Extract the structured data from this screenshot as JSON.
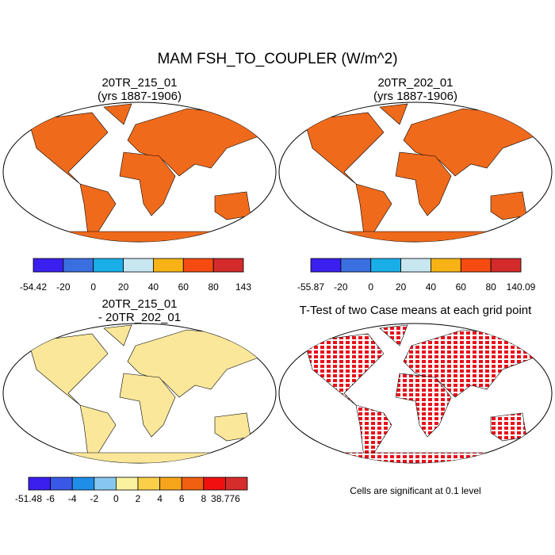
{
  "title": "MAM FSH_TO_COUPLER (W/m^2)",
  "panels": [
    {
      "title": "20TR_215_01",
      "subtitle": "(yrs 1887-1906)",
      "colorbar": {
        "colors": [
          "#3b1fee",
          "#3a6fe0",
          "#1aaee8",
          "#c8e6f0",
          "#f7b316",
          "#f54b10",
          "#d32b2b"
        ],
        "labels": [
          -54.42,
          -20,
          0,
          20,
          40,
          60,
          80,
          143
        ]
      }
    },
    {
      "title": "20TR_202_01",
      "subtitle": "(yrs 1887-1906)",
      "colorbar": {
        "colors": [
          "#3b1fee",
          "#3a6fe0",
          "#1aaee8",
          "#c8e6f0",
          "#f7b316",
          "#f54b10",
          "#d32b2b"
        ],
        "labels": [
          -55.87,
          -20,
          0,
          20,
          40,
          60,
          80,
          140.09
        ]
      }
    },
    {
      "title": "20TR_215_01",
      "subtitle": "- 20TR_202_01",
      "colorbar": {
        "colors": [
          "#3b1fee",
          "#3a58e6",
          "#1e8ee8",
          "#87c7ef",
          "#fbf2a0",
          "#fbd048",
          "#f7a51a",
          "#f06010",
          "#f01010",
          "#d52c2c"
        ],
        "labels": [
          -51.48,
          -6,
          -4,
          -2,
          0,
          2,
          4,
          6,
          8,
          38.776
        ]
      }
    },
    {
      "title": "T-Test of two Case means at each grid point",
      "note": "Cells are significant at 0.1 level"
    }
  ]
}
